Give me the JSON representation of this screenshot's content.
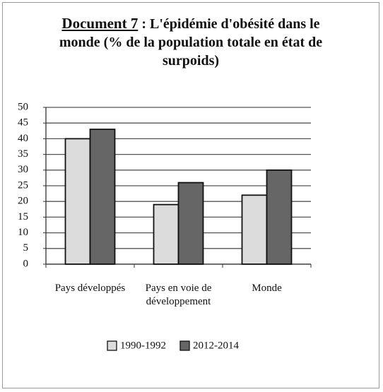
{
  "chart_data": {
    "type": "bar",
    "label": "Document 7",
    "title": ": L'épidémie d'obésité dans le monde (% de la population totale en état de surpoids)",
    "categories": [
      "Pays développés",
      "Pays en voie de développement",
      "Monde"
    ],
    "series": [
      {
        "name": "1990-1992",
        "color": "#dcdcdc",
        "values": [
          40,
          19,
          22
        ]
      },
      {
        "name": "2012-2014",
        "color": "#666666",
        "values": [
          43,
          26,
          30
        ]
      }
    ],
    "ylim": [
      0,
      50
    ],
    "yticks": [
      0,
      5,
      10,
      15,
      20,
      25,
      30,
      35,
      40,
      45,
      50
    ],
    "grid": true,
    "legend": "bottom"
  }
}
